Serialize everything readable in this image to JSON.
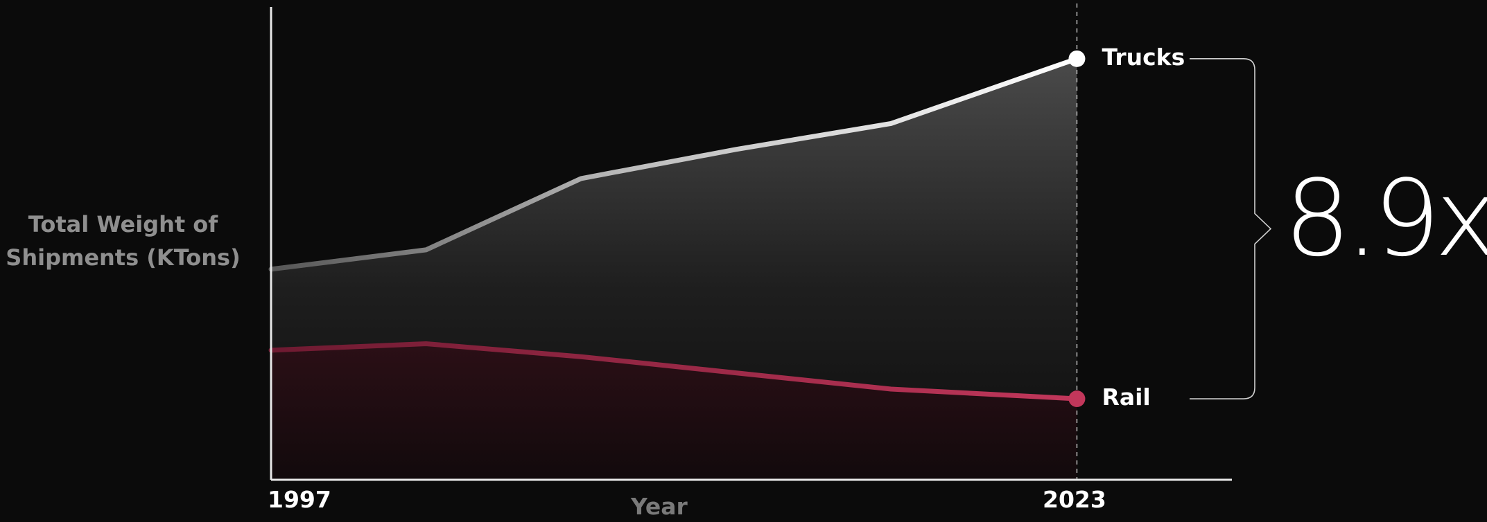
{
  "chart_data": {
    "type": "area",
    "x": [
      1997,
      2002,
      2007,
      2012,
      2017,
      2023
    ],
    "series": [
      {
        "name": "Trucks",
        "values": [
          2.95,
          3.25,
          4.35,
          4.8,
          5.2,
          6.2
        ],
        "color": "#ffffff"
      },
      {
        "name": "Rail",
        "values": [
          1.7,
          1.8,
          1.6,
          1.35,
          1.1,
          0.95
        ],
        "color": "#c2375b"
      }
    ],
    "xlabel": "Year",
    "ylabel": "Total Weight of Shipments (KTons)",
    "xticks": [
      "1997",
      "2023"
    ],
    "xlim": [
      1997,
      2028
    ],
    "ylim": [
      -0.3,
      7.0
    ],
    "grid": false,
    "annotation": "8.9x"
  }
}
